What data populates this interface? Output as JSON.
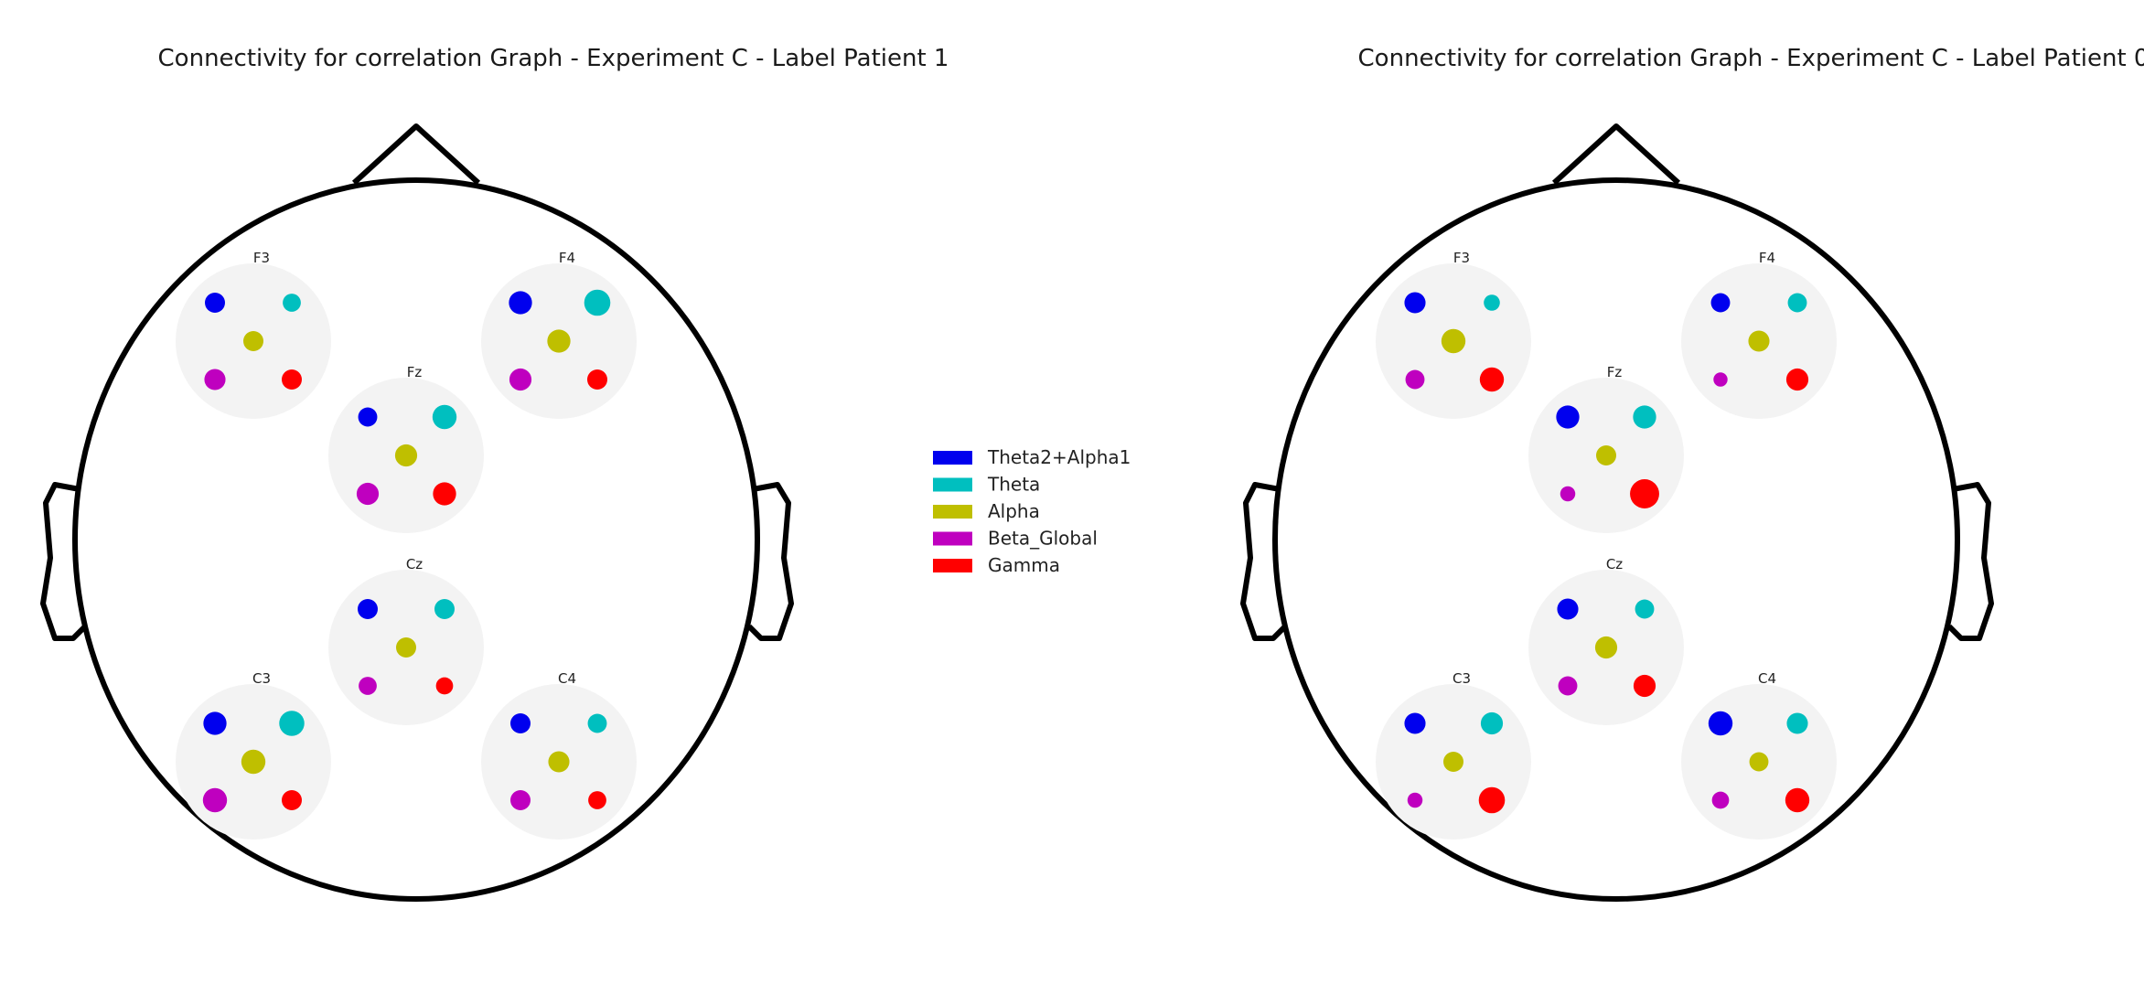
{
  "figure": {
    "panels": [
      {
        "title": "Connectivity for correlation Graph - Experiment C - Label Patient 1",
        "electrodes": [
          {
            "label": "F3",
            "bands": [
              1.0,
              0.9,
              1.0,
              1.05,
              1.0
            ]
          },
          {
            "label": "F4",
            "bands": [
              1.15,
              1.3,
              1.15,
              1.1,
              1.0
            ]
          },
          {
            "label": "Fz",
            "bands": [
              0.95,
              1.2,
              1.1,
              1.1,
              1.15
            ]
          },
          {
            "label": "Cz",
            "bands": [
              1.0,
              1.0,
              1.0,
              0.9,
              0.85
            ]
          },
          {
            "label": "C3",
            "bands": [
              1.15,
              1.25,
              1.2,
              1.2,
              1.0
            ]
          },
          {
            "label": "C4",
            "bands": [
              1.0,
              0.95,
              1.05,
              1.0,
              0.9
            ]
          }
        ]
      },
      {
        "title": "Connectivity for correlation Graph - Experiment C - Label Patient 0",
        "electrodes": [
          {
            "label": "F3",
            "bands": [
              1.05,
              0.8,
              1.2,
              0.95,
              1.2
            ]
          },
          {
            "label": "F4",
            "bands": [
              0.95,
              0.95,
              1.05,
              0.7,
              1.1
            ]
          },
          {
            "label": "Fz",
            "bands": [
              1.15,
              1.15,
              1.0,
              0.75,
              1.45
            ]
          },
          {
            "label": "Cz",
            "bands": [
              1.05,
              0.95,
              1.1,
              0.95,
              1.1
            ]
          },
          {
            "label": "C3",
            "bands": [
              1.05,
              1.1,
              1.0,
              0.75,
              1.3
            ]
          },
          {
            "label": "C4",
            "bands": [
              1.2,
              1.05,
              0.95,
              0.85,
              1.2
            ]
          }
        ]
      }
    ],
    "legend": [
      {
        "name": "Theta2+Alpha1",
        "color": "#0000ee"
      },
      {
        "name": "Theta",
        "color": "#00bfbf"
      },
      {
        "name": "Alpha",
        "color": "#bfbf00"
      },
      {
        "name": "Beta_Global",
        "color": "#bf00bf"
      },
      {
        "name": "Gamma",
        "color": "#ff0000"
      }
    ]
  }
}
